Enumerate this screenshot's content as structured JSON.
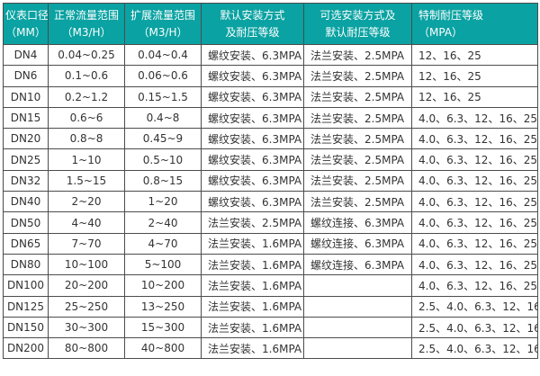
{
  "colors": {
    "header_bg": "#0aa2a2",
    "header_text": "#ffffff",
    "body_text": "#333333",
    "border": "#4c4c4c",
    "row_bg": "#ffffff"
  },
  "table": {
    "columns": [
      {
        "key": "diameter",
        "line1": "仪表口径",
        "line2": "（MM）",
        "align": "center"
      },
      {
        "key": "normal_range",
        "line1": "正常流量范围",
        "line2": "（M3/H）",
        "align": "center"
      },
      {
        "key": "extended_range",
        "line1": "扩展流量范围",
        "line2": "（M3/H）",
        "align": "center"
      },
      {
        "key": "default_install",
        "line1": "默认安装方式",
        "line2": "及耐压等级",
        "align": "center"
      },
      {
        "key": "optional_install",
        "line1": "可选安装方式及",
        "line2": "默认耐压等级",
        "align": "center"
      },
      {
        "key": "special_pressure",
        "line1": "特制耐压等级",
        "line2": "（MPA）",
        "align": "left"
      }
    ],
    "rows": [
      [
        "DN4",
        "0.04~0.25",
        "0.04~0.4",
        "螺纹安装、6.3MPA",
        "法兰安装、2.5MPA",
        "12、16、25"
      ],
      [
        "DN6",
        "0.1~0.6",
        "0.06~0.6",
        "螺纹安装、6.3MPA",
        "法兰安装、2.5MPA",
        "12、16、25"
      ],
      [
        "DN10",
        "0.2~1.2",
        "0.15~1.5",
        "螺纹安装、6.3MPA",
        "法兰安装、2.5MPA",
        "12、16、25"
      ],
      [
        "DN15",
        "0.6~6",
        "0.4~8",
        "螺纹安装、6.3MPA",
        "法兰安装、2.5MPA",
        "4.0、6.3、12、16、25"
      ],
      [
        "DN20",
        "0.8~8",
        "0.45~9",
        "螺纹安装、6.3MPA",
        "法兰安装、2.5MPA",
        "4.0、6.3、12、16、25"
      ],
      [
        "DN25",
        "1~10",
        "0.5~10",
        "螺纹安装、6.3MPA",
        "法兰安装、2.5MPA",
        "4.0、6.3、12、16、25"
      ],
      [
        "DN32",
        "1.5~15",
        "0.8~15",
        "螺纹安装、6.3MPA",
        "法兰安装、2.5MPA",
        "4.0、6.3、12、16、25"
      ],
      [
        "DN40",
        "2~20",
        "1~20",
        "螺纹安装、6.3MPA",
        "法兰安装、2.5MPA",
        "4.0、6.3、12、16、25"
      ],
      [
        "DN50",
        "4~40",
        "2~40",
        "法兰安装、2.5MPA",
        "螺纹连接、6.3MPA",
        "4.0、6.3、12、16、25"
      ],
      [
        "DN65",
        "7~70",
        "4~70",
        "法兰安装、1.6MPA",
        "螺纹连接、6.3MPA",
        "4.0、6.3、12、16、25"
      ],
      [
        "DN80",
        "10~100",
        "5~100",
        "法兰安装、1.6MPA",
        "螺纹连接、6.3MPA",
        "4.0、6.3、12、16、25"
      ],
      [
        "DN100",
        "20~200",
        "10~200",
        "法兰安装、1.6MPA",
        "",
        "4.0、6.3、12、16、25"
      ],
      [
        "DN125",
        "25~250",
        "13~250",
        "法兰安装、1.6MPA",
        "",
        "2.5、4.0、6.3、12、16"
      ],
      [
        "DN150",
        "30~300",
        "15~300",
        "法兰安装、1.6MPA",
        "",
        "2.5、4.0、6.3、12、16"
      ],
      [
        "DN200",
        "80~800",
        "40~800",
        "法兰安装、1.6MPA",
        "",
        "2.5、4.0、6.3、12、16"
      ]
    ]
  }
}
